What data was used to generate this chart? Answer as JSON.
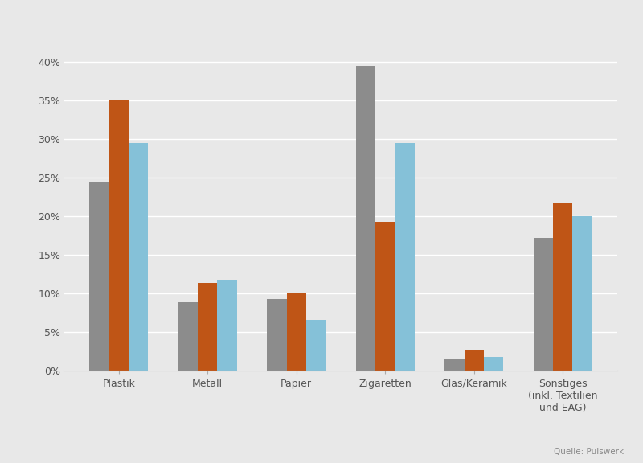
{
  "categories": [
    "Plastik",
    "Metall",
    "Papier",
    "Zigaretten",
    "Glas/Keramik",
    "Sonstiges\n(inkl. Textilien\nund EAG)"
  ],
  "series": {
    "Stadt": [
      24.5,
      8.8,
      9.3,
      39.5,
      1.5,
      17.2
    ],
    "Land": [
      35.0,
      11.3,
      10.1,
      19.3,
      2.7,
      21.8
    ],
    "Fluss": [
      29.5,
      11.8,
      6.5,
      29.5,
      1.8,
      20.0
    ]
  },
  "colors": {
    "Stadt": "#8c8c8c",
    "Land": "#bf5516",
    "Fluss": "#85c1d8"
  },
  "ylim": [
    0,
    42
  ],
  "yticks": [
    0,
    5,
    10,
    15,
    20,
    25,
    30,
    35,
    40
  ],
  "background_color": "#e8e8e8",
  "plot_background_color": "#e8e8e8",
  "grid_color": "#ffffff",
  "source_text": "Quelle: Pulswerk",
  "bar_width": 0.22,
  "tick_fontsize": 9,
  "legend_fontsize": 9
}
